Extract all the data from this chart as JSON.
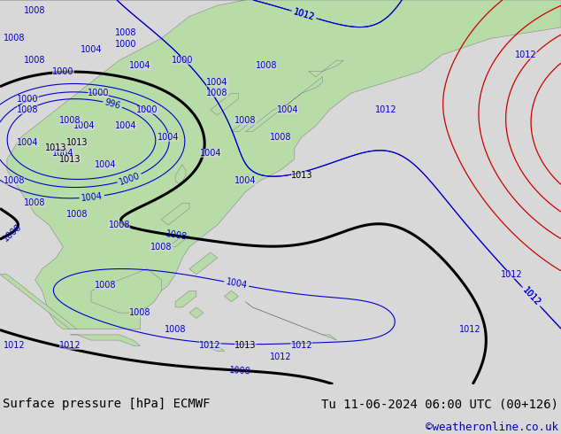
{
  "title_left": "Surface pressure [hPa] ECMWF",
  "title_right": "Tu 11-06-2024 06:00 UTC (00+126)",
  "copyright": "©weatheronline.co.uk",
  "bg_color": "#d8d8d8",
  "land_color": "#b8dca8",
  "coast_color": "#888888",
  "contour_blue": "#0000cc",
  "contour_red": "#cc0000",
  "contour_black": "#000000",
  "bottom_bar_color": "#ffffff",
  "title_color": "#000000",
  "copyright_color": "#0000bb",
  "font_size_title": 10,
  "font_size_label": 7,
  "font_size_copyright": 9,
  "xlim": [
    95,
    175
  ],
  "ylim": [
    -15,
    55
  ],
  "figsize": [
    6.34,
    4.9
  ],
  "dpi": 100
}
